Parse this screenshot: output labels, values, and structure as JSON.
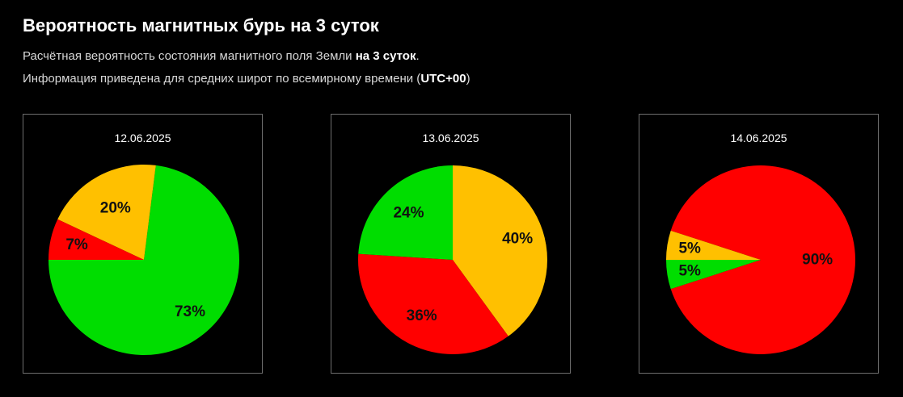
{
  "header": {
    "title": "Вероятность магнитных бурь на 3 суток",
    "line1_text": "Расчётная вероятность состояния магнитного поля Земли ",
    "line1_bold": "на 3 суток",
    "line1_end": ".",
    "line2_text": "Информация приведена для средних широт по всемирному времени (",
    "line2_bold": "UTC+00",
    "line2_end": ")"
  },
  "colors": {
    "green": "#00dd00",
    "yellow": "#ffc000",
    "red": "#ff0000"
  },
  "chart_data": [
    {
      "type": "pie",
      "title": "12.06.2025",
      "slices": [
        {
          "value": 73,
          "label": "73%",
          "color": "green"
        },
        {
          "value": 20,
          "label": "20%",
          "color": "yellow"
        },
        {
          "value": 7,
          "label": "7%",
          "color": "red"
        }
      ]
    },
    {
      "type": "pie",
      "title": "13.06.2025",
      "slices": [
        {
          "value": 40,
          "label": "40%",
          "color": "yellow"
        },
        {
          "value": 36,
          "label": "36%",
          "color": "red"
        },
        {
          "value": 24,
          "label": "24%",
          "color": "green"
        }
      ]
    },
    {
      "type": "pie",
      "title": "14.06.2025",
      "slices": [
        {
          "value": 90,
          "label": "90%",
          "color": "red"
        },
        {
          "value": 5,
          "label": "5%",
          "color": "green"
        },
        {
          "value": 5,
          "label": "5%",
          "color": "yellow"
        }
      ]
    }
  ]
}
